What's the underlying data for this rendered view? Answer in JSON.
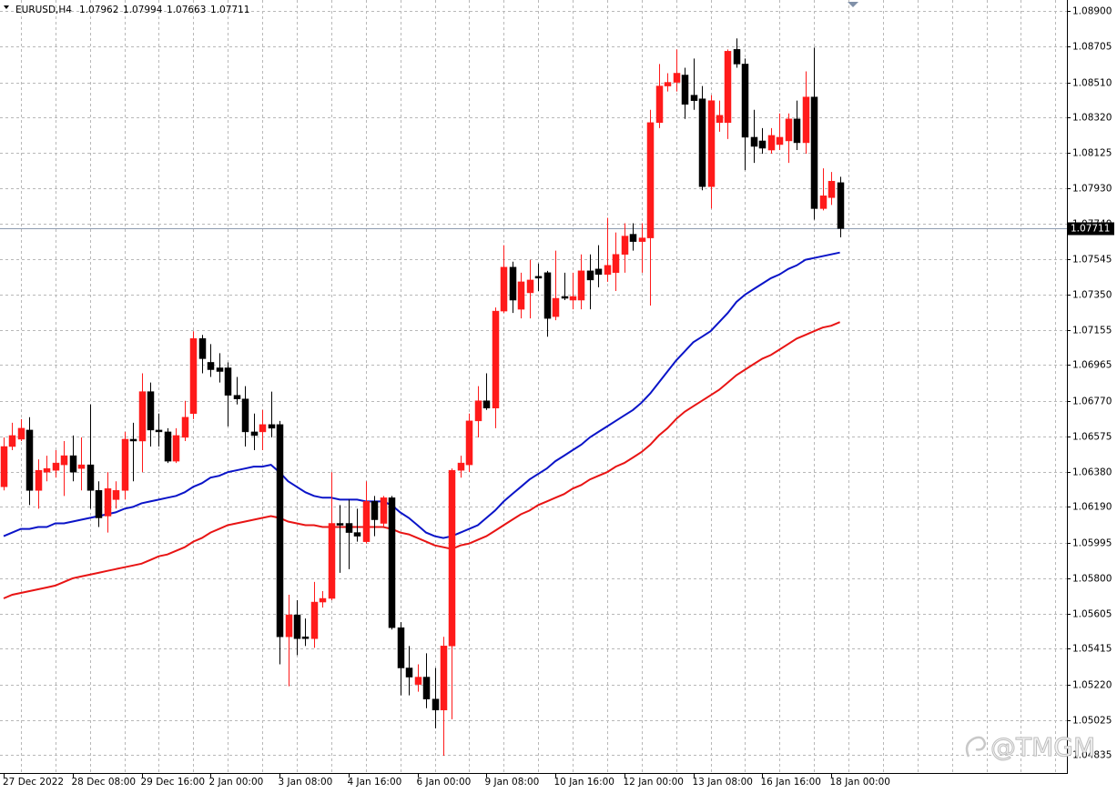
{
  "chart_data": {
    "type": "candlestick",
    "title": "EURUSD,H4",
    "watermark": "@TMGM",
    "up_color": "#ff1a1a",
    "down_color": "#000000",
    "grid": true,
    "ylim": [
      1.04736,
      1.0896
    ],
    "yticks": [
      {
        "value": 1.089,
        "label": "1.08900"
      },
      {
        "value": 1.08705,
        "label": "1.08705"
      },
      {
        "value": 1.0851,
        "label": "1.08510"
      },
      {
        "value": 1.0832,
        "label": "1.08320"
      },
      {
        "value": 1.08125,
        "label": "1.08125"
      },
      {
        "value": 1.0793,
        "label": "1.07930"
      },
      {
        "value": 1.0774,
        "label": "1.07740"
      },
      {
        "value": 1.07545,
        "label": "1.07545"
      },
      {
        "value": 1.0735,
        "label": "1.07350"
      },
      {
        "value": 1.07155,
        "label": "1.07155"
      },
      {
        "value": 1.06965,
        "label": "1.06965"
      },
      {
        "value": 1.0677,
        "label": "1.06770"
      },
      {
        "value": 1.06575,
        "label": "1.06575"
      },
      {
        "value": 1.0638,
        "label": "1.06380"
      },
      {
        "value": 1.0619,
        "label": "1.06190"
      },
      {
        "value": 1.05995,
        "label": "1.05995"
      },
      {
        "value": 1.058,
        "label": "1.05800"
      },
      {
        "value": 1.05605,
        "label": "1.05605"
      },
      {
        "value": 1.05415,
        "label": "1.05415"
      },
      {
        "value": 1.0522,
        "label": "1.05220"
      },
      {
        "value": 1.05025,
        "label": "1.05025"
      },
      {
        "value": 1.04835,
        "label": "1.04835"
      }
    ],
    "categories": [
      "27 Dec 2022",
      null,
      null,
      null,
      null,
      null,
      null,
      null,
      "28 Dec 08:00",
      null,
      null,
      null,
      null,
      null,
      null,
      null,
      "29 Dec 16:00",
      null,
      null,
      null,
      null,
      null,
      null,
      null,
      "2 Jan 00:00",
      null,
      null,
      null,
      null,
      null,
      null,
      null,
      "3 Jan 08:00",
      null,
      null,
      null,
      null,
      null,
      null,
      null,
      "4 Jan 16:00",
      null,
      null,
      null,
      null,
      null,
      null,
      null,
      "6 Jan 00:00",
      null,
      null,
      null,
      null,
      null,
      null,
      null,
      "9 Jan 08:00",
      null,
      null,
      null,
      null,
      null,
      null,
      null,
      "10 Jan 16:00",
      null,
      null,
      null,
      null,
      null,
      null,
      null,
      "12 Jan 00:00",
      null,
      null,
      null,
      null,
      null,
      null,
      null,
      "13 Jan 08:00",
      null,
      null,
      null,
      null,
      null,
      null,
      null,
      "16 Jan 16:00",
      null,
      null,
      null,
      null,
      null,
      null,
      null,
      "18 Jan 00:00",
      null
    ],
    "open": [
      1.063,
      1.0652,
      1.0656,
      1.0661,
      1.0628,
      1.0638,
      1.0639,
      1.0642,
      1.0647,
      1.064,
      1.0642,
      1.0628,
      1.0614,
      1.0623,
      1.0628,
      1.0656,
      1.0655,
      1.0682,
      1.0661,
      1.066,
      1.0644,
      1.0657,
      1.067,
      1.0711,
      1.0698,
      1.0695,
      1.0695,
      1.068,
      1.0678,
      1.066,
      1.066,
      1.0664,
      1.0664,
      1.0548,
      1.056,
      1.0548,
      1.0547,
      1.0567,
      1.0569,
      1.061,
      1.061,
      1.0605,
      1.06,
      1.0622,
      1.061,
      1.0624,
      1.0553,
      1.0531,
      1.0522,
      1.0526,
      1.0514,
      1.0508,
      1.0543,
      1.0639,
      1.0642,
      1.0666,
      1.0677,
      1.0673,
      1.0726,
      1.075,
      1.0727,
      1.0736,
      1.0745,
      1.0747,
      1.0723,
      1.0734,
      1.0732,
      1.0732,
      1.0748,
      1.0749,
      1.0746,
      1.0747,
      1.0757,
      1.0768,
      1.0764,
      1.0766,
      1.0829,
      1.0849,
      1.0851,
      1.0855,
      1.0844,
      1.0842,
      1.0794,
      1.0829,
      1.0829,
      1.0869,
      1.0861,
      1.0821,
      1.0819,
      1.0814,
      1.0817,
      1.0819,
      1.0831,
      1.0818,
      1.0843,
      1.0782,
      1.0788,
      1.07962
    ],
    "high": [
      1.0657,
      1.0665,
      1.0667,
      1.0668,
      1.0645,
      1.0647,
      1.065,
      1.0655,
      1.0658,
      1.0657,
      1.0675,
      1.0633,
      1.0638,
      1.0633,
      1.066,
      1.0665,
      1.0692,
      1.0687,
      1.067,
      1.0662,
      1.0662,
      1.0677,
      1.0715,
      1.0713,
      1.0708,
      1.0703,
      1.0698,
      1.069,
      1.0685,
      1.067,
      1.0672,
      1.0682,
      1.0666,
      1.0571,
      1.0568,
      1.0558,
      1.0578,
      1.0573,
      1.0638,
      1.062,
      1.0623,
      1.0618,
      1.0633,
      1.0625,
      1.0625,
      1.0625,
      1.0556,
      1.0543,
      1.0533,
      1.0539,
      1.0531,
      1.0548,
      1.064,
      1.0647,
      1.067,
      1.0685,
      1.0692,
      1.0728,
      1.0762,
      1.0753,
      1.0747,
      1.0754,
      1.0752,
      1.0748,
      1.0759,
      1.0747,
      1.0747,
      1.0757,
      1.0757,
      1.0762,
      1.0777,
      1.0769,
      1.0774,
      1.0774,
      1.0774,
      1.0836,
      1.0861,
      1.0856,
      1.0869,
      1.0859,
      1.0864,
      1.0849,
      1.0844,
      1.0841,
      1.0869,
      1.0875,
      1.0864,
      1.0836,
      1.0826,
      1.0826,
      1.0834,
      1.0834,
      1.0841,
      1.0857,
      1.087,
      1.0804,
      1.0802,
      1.07994
    ],
    "low": [
      1.0628,
      1.065,
      1.0655,
      1.062,
      1.0618,
      1.0633,
      1.0635,
      1.0625,
      1.0633,
      1.0628,
      1.0618,
      1.0608,
      1.0605,
      1.0618,
      1.0623,
      1.0633,
      1.0638,
      1.0652,
      1.0652,
      1.0643,
      1.0643,
      1.0655,
      1.0667,
      1.0692,
      1.069,
      1.0687,
      1.0663,
      1.0675,
      1.0652,
      1.065,
      1.065,
      1.0657,
      1.0533,
      1.0521,
      1.0538,
      1.0543,
      1.0542,
      1.0564,
      1.0568,
      1.0583,
      1.0585,
      1.06,
      1.0599,
      1.0603,
      1.0608,
      1.0552,
      1.0516,
      1.0516,
      1.0518,
      1.0509,
      1.0498,
      1.0483,
      1.0503,
      1.0635,
      1.0638,
      1.0657,
      1.0672,
      1.0662,
      1.0725,
      1.0725,
      1.0722,
      1.0722,
      1.0737,
      1.0712,
      1.0721,
      1.0732,
      1.0727,
      1.0727,
      1.0727,
      1.0739,
      1.0742,
      1.0737,
      1.0747,
      1.0759,
      1.0747,
      1.0729,
      1.0826,
      1.0846,
      1.0846,
      1.0831,
      1.0836,
      1.0792,
      1.0782,
      1.0824,
      1.082,
      1.0859,
      1.0803,
      1.0807,
      1.0812,
      1.0812,
      1.0814,
      1.0807,
      1.0814,
      1.0812,
      1.0776,
      1.0781,
      1.0784,
      1.07663
    ],
    "close": [
      1.0652,
      1.0658,
      1.0662,
      1.0628,
      1.0639,
      1.064,
      1.0643,
      1.0647,
      1.0638,
      1.0642,
      1.0628,
      1.0613,
      1.0629,
      1.0628,
      1.0656,
      1.0655,
      1.0682,
      1.0661,
      1.066,
      1.0644,
      1.0658,
      1.0668,
      1.0711,
      1.07,
      1.0694,
      1.0693,
      1.068,
      1.0678,
      1.066,
      1.0658,
      1.0664,
      1.0662,
      1.0548,
      1.056,
      1.0547,
      1.0547,
      1.0567,
      1.0569,
      1.061,
      1.0609,
      1.0605,
      1.0603,
      1.0622,
      1.0612,
      1.0624,
      1.0553,
      1.0531,
      1.0526,
      1.0526,
      1.0514,
      1.0508,
      1.0543,
      1.0639,
      1.0643,
      1.0666,
      1.0677,
      1.0673,
      1.0726,
      1.075,
      1.0732,
      1.0742,
      1.0743,
      1.0744,
      1.0722,
      1.0733,
      1.0733,
      1.0734,
      1.0748,
      1.0743,
      1.0746,
      1.0751,
      1.0757,
      1.0767,
      1.0764,
      1.0766,
      1.0829,
      1.0849,
      1.0851,
      1.0856,
      1.0839,
      1.0841,
      1.0794,
      1.0841,
      1.0833,
      1.0868,
      1.0861,
      1.0821,
      1.0816,
      1.0815,
      1.0822,
      1.0821,
      1.0831,
      1.0818,
      1.0843,
      1.0782,
      1.0789,
      1.0797,
      1.07711
    ],
    "series": [
      {
        "color": "#0a14c8",
        "values": [
          1.0603,
          1.0605,
          1.0607,
          1.0607,
          1.0608,
          1.0608,
          1.061,
          1.061,
          1.0611,
          1.0612,
          1.0613,
          1.0614,
          1.0615,
          1.0616,
          1.0618,
          1.0619,
          1.0621,
          1.0622,
          1.0623,
          1.0624,
          1.0625,
          1.0627,
          1.063,
          1.0632,
          1.0635,
          1.0636,
          1.0638,
          1.0639,
          1.064,
          1.0641,
          1.0641,
          1.0642,
          1.0638,
          1.0633,
          1.063,
          1.0627,
          1.0625,
          1.0624,
          1.0624,
          1.0623,
          1.0623,
          1.0623,
          1.0622,
          1.0622,
          1.0622,
          1.062,
          1.0616,
          1.0613,
          1.0609,
          1.0605,
          1.0603,
          1.0602,
          1.0603,
          1.0605,
          1.0607,
          1.0609,
          1.0613,
          1.0617,
          1.0622,
          1.0626,
          1.063,
          1.0634,
          1.0637,
          1.064,
          1.0644,
          1.0647,
          1.065,
          1.0653,
          1.0657,
          1.066,
          1.0663,
          1.0666,
          1.0669,
          1.0672,
          1.0676,
          1.0681,
          1.0687,
          1.0693,
          1.0699,
          1.0704,
          1.0709,
          1.0712,
          1.0715,
          1.072,
          1.0725,
          1.0731,
          1.0735,
          1.0738,
          1.0741,
          1.0744,
          1.0746,
          1.0749,
          1.0751,
          1.0754,
          1.0755,
          1.0756,
          1.0757,
          1.0758
        ]
      },
      {
        "color": "#e81414",
        "values": [
          1.0569,
          1.0571,
          1.0572,
          1.0573,
          1.0574,
          1.0575,
          1.0576,
          1.0578,
          1.058,
          1.0581,
          1.0582,
          1.0583,
          1.0584,
          1.0585,
          1.0586,
          1.0587,
          1.0588,
          1.059,
          1.0592,
          1.0593,
          1.0595,
          1.0597,
          1.06,
          1.0602,
          1.0605,
          1.0607,
          1.0609,
          1.061,
          1.0611,
          1.0612,
          1.0613,
          1.0614,
          1.0613,
          1.0611,
          1.061,
          1.0609,
          1.0609,
          1.0608,
          1.0608,
          1.0608,
          1.0608,
          1.0608,
          1.0608,
          1.0608,
          1.0608,
          1.0607,
          1.0605,
          1.0604,
          1.0602,
          1.06,
          1.0598,
          1.0597,
          1.0596,
          1.0598,
          1.0599,
          1.0601,
          1.0603,
          1.0606,
          1.0609,
          1.0612,
          1.0615,
          1.0617,
          1.062,
          1.0622,
          1.0624,
          1.0626,
          1.0629,
          1.0631,
          1.0634,
          1.0636,
          1.0638,
          1.0641,
          1.0643,
          1.0646,
          1.0649,
          1.0653,
          1.0658,
          1.0662,
          1.0667,
          1.0671,
          1.0674,
          1.0677,
          1.068,
          1.0683,
          1.0687,
          1.0691,
          1.0694,
          1.0697,
          1.07,
          1.0702,
          1.0705,
          1.0708,
          1.0711,
          1.0713,
          1.0715,
          1.0717,
          1.0718,
          1.072
        ]
      }
    ]
  }
}
